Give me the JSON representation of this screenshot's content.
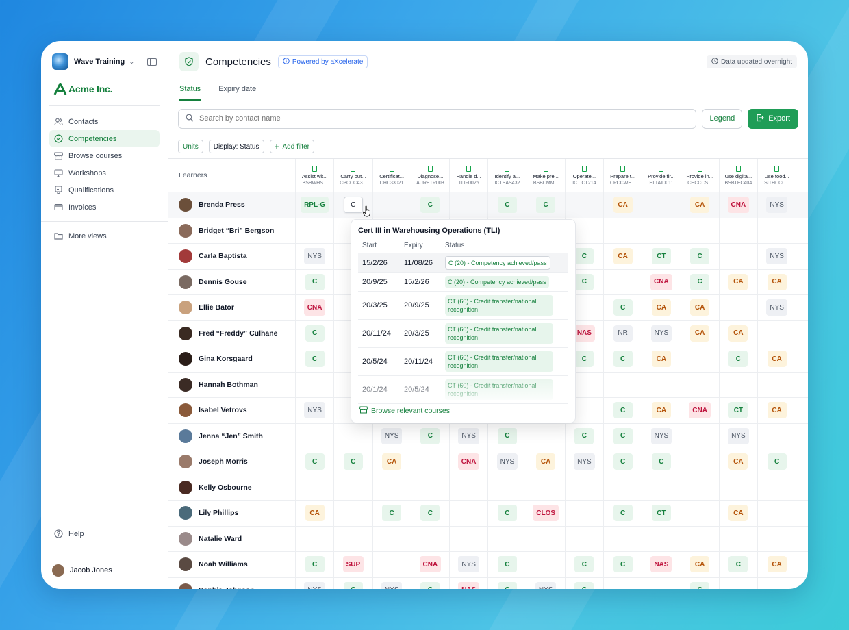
{
  "sidebar": {
    "workspace": "Wave Training",
    "brand": "Acme Inc.",
    "nav": [
      {
        "label": "Contacts",
        "icon": "users-icon",
        "active": false
      },
      {
        "label": "Competencies",
        "icon": "shield-check-icon",
        "active": true
      },
      {
        "label": "Browse courses",
        "icon": "store-icon",
        "active": false
      },
      {
        "label": "Workshops",
        "icon": "workshop-icon",
        "active": false
      },
      {
        "label": "Qualifications",
        "icon": "certificate-icon",
        "active": false
      },
      {
        "label": "Invoices",
        "icon": "card-icon",
        "active": false
      }
    ],
    "more_views": "More views",
    "help": "Help",
    "user": "Jacob Jones"
  },
  "header": {
    "title": "Competencies",
    "powered": "Powered by aXcelerate",
    "updated": "Data updated overnight"
  },
  "tabs": [
    {
      "label": "Status",
      "active": true
    },
    {
      "label": "Expiry date",
      "active": false
    }
  ],
  "toolbar": {
    "search_placeholder": "Search by contact name",
    "legend": "Legend",
    "export": "Export"
  },
  "filters": {
    "units": "Units",
    "display": "Display: Status",
    "add": "Add filter"
  },
  "grid": {
    "learners_label": "Learners",
    "columns": [
      {
        "title": "Assist wit...",
        "code": "BSBWHS..."
      },
      {
        "title": "Carry out...",
        "code": "CPCCCA3..."
      },
      {
        "title": "Certificat...",
        "code": "CHC33021"
      },
      {
        "title": "Diagnose...",
        "code": "AURETR003"
      },
      {
        "title": "Handle d...",
        "code": "TLIF0025"
      },
      {
        "title": "Identify a...",
        "code": "ICTSAS432"
      },
      {
        "title": "Make pre...",
        "code": "BSBCMM..."
      },
      {
        "title": "Operate...",
        "code": "ICTICT214"
      },
      {
        "title": "Prepare t...",
        "code": "CPCCWH..."
      },
      {
        "title": "Provide fir...",
        "code": "HLTAID011"
      },
      {
        "title": "Provide in...",
        "code": "CHCCCS..."
      },
      {
        "title": "Use digita...",
        "code": "BSBTEC404"
      },
      {
        "title": "Use food...",
        "code": "SITHCCC..."
      }
    ],
    "rows": [
      {
        "name": "Brenda Press",
        "avatar": "#6b4f3a",
        "cells": [
          "RPL-G",
          "C*",
          "",
          "C",
          "",
          "C",
          "C",
          "",
          "CA",
          "",
          "CA",
          "CNA",
          "NYS"
        ]
      },
      {
        "name": "Bridget “Bri” Bergson",
        "avatar": "#8a6a5a",
        "cells": [
          "",
          "",
          "",
          "",
          "",
          "",
          "",
          "",
          "",
          "",
          "",
          "",
          ""
        ]
      },
      {
        "name": "Carla Baptista",
        "avatar": "#a23a3a",
        "cells": [
          "NYS",
          "",
          "",
          "",
          "",
          "",
          "",
          "C",
          "CA",
          "CT",
          "C",
          "",
          "NYS"
        ]
      },
      {
        "name": "Dennis Gouse",
        "avatar": "#7a6a62",
        "cells": [
          "C",
          "",
          "",
          "",
          "",
          "",
          "",
          "C",
          "",
          "CNA",
          "C",
          "CA",
          "CA"
        ]
      },
      {
        "name": "Ellie Bator",
        "avatar": "#c9a17d",
        "cells": [
          "CNA",
          "",
          "",
          "",
          "",
          "",
          "",
          "",
          "C",
          "CA",
          "CA",
          "",
          "NYS"
        ]
      },
      {
        "name": "Fred “Freddy” Culhane",
        "avatar": "#3a2a22",
        "cells": [
          "C",
          "",
          "",
          "",
          "",
          "",
          "",
          "NAS",
          "NR",
          "NYS",
          "CA",
          "CA",
          ""
        ]
      },
      {
        "name": "Gina Korsgaard",
        "avatar": "#2a1d18",
        "cells": [
          "C",
          "",
          "",
          "",
          "",
          "",
          "",
          "C",
          "C",
          "CA",
          "",
          "C",
          "CA"
        ]
      },
      {
        "name": "Hannah Bothman",
        "avatar": "#3b2b25",
        "cells": [
          "",
          "",
          "",
          "",
          "",
          "",
          "",
          "",
          "",
          "",
          "",
          "",
          ""
        ]
      },
      {
        "name": "Isabel Vetrovs",
        "avatar": "#8a5a3a",
        "cells": [
          "NYS",
          "",
          "",
          "",
          "",
          "",
          "",
          "",
          "C",
          "CA",
          "CNA",
          "CT",
          "CA"
        ]
      },
      {
        "name": "Jenna “Jen” Smith",
        "avatar": "#5a7a9a",
        "cells": [
          "",
          "",
          "NYS",
          "C",
          "NYS",
          "C",
          "",
          "C",
          "C",
          "NYS",
          "",
          "NYS",
          ""
        ]
      },
      {
        "name": "Joseph Morris",
        "avatar": "#9a7a6a",
        "cells": [
          "C",
          "C",
          "CA",
          "",
          "CNA",
          "NYS",
          "CA",
          "NYS",
          "C",
          "C",
          "",
          "CA",
          "C"
        ]
      },
      {
        "name": "Kelly Osbourne",
        "avatar": "#4a2a22",
        "cells": [
          "",
          "",
          "",
          "",
          "",
          "",
          "",
          "",
          "",
          "",
          "",
          "",
          ""
        ]
      },
      {
        "name": "Lily Phillips",
        "avatar": "#4a6a7a",
        "cells": [
          "CA",
          "",
          "C",
          "C",
          "",
          "C",
          "CLOS",
          "",
          "C",
          "CT",
          "",
          "CA",
          ""
        ]
      },
      {
        "name": "Natalie Ward",
        "avatar": "#9a8a8a",
        "cells": [
          "",
          "",
          "",
          "",
          "",
          "",
          "",
          "",
          "",
          "",
          "",
          "",
          ""
        ]
      },
      {
        "name": "Noah Williams",
        "avatar": "#5a4a42",
        "cells": [
          "C",
          "SUP",
          "",
          "CNA",
          "NYS",
          "C",
          "",
          "C",
          "C",
          "NAS",
          "CA",
          "C",
          "CA"
        ]
      },
      {
        "name": "Sophia Johnson",
        "avatar": "#7a5a4a",
        "cells": [
          "NYS",
          "C",
          "NYS",
          "C",
          "NAS",
          "C",
          "NYS",
          "C",
          "",
          "",
          "C",
          "",
          ""
        ]
      }
    ]
  },
  "popover": {
    "title": "Cert III in Warehousing Operations (TLI)",
    "col_start": "Start",
    "col_expiry": "Expiry",
    "col_status": "Status",
    "rows": [
      {
        "start": "15/2/26",
        "expiry": "11/08/26",
        "status": "C (20) - Competency achieved/pass"
      },
      {
        "start": "20/9/25",
        "expiry": "15/2/26",
        "status": "C (20) - Competency achieved/pass"
      },
      {
        "start": "20/3/25",
        "expiry": "20/9/25",
        "status": "CT (60) - Credit transfer/national recognition"
      },
      {
        "start": "20/11/24",
        "expiry": "20/3/25",
        "status": "CT (60) - Credit transfer/national recognition"
      },
      {
        "start": "20/5/24",
        "expiry": "20/11/24",
        "status": "CT (60) - Credit transfer/national recognition"
      },
      {
        "start": "20/1/24",
        "expiry": "20/5/24",
        "status": "CT (60) - Credit transfer/national recognition"
      }
    ],
    "footer": "Browse relevant courses"
  }
}
